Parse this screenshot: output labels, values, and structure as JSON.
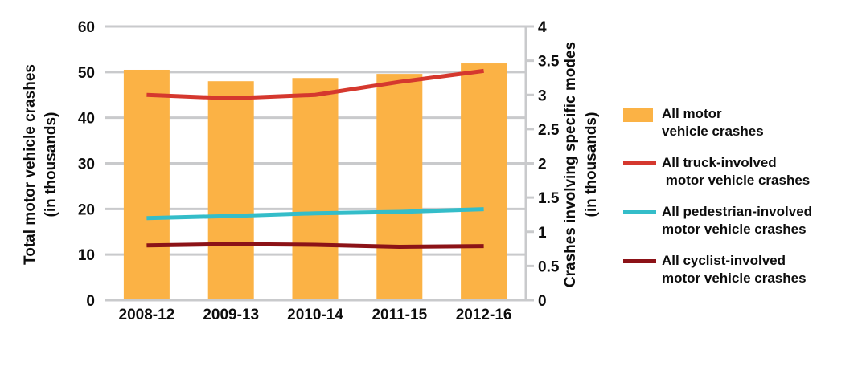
{
  "chart_data": {
    "type": "bar+line",
    "categories": [
      "2008-12",
      "2009-13",
      "2010-14",
      "2011-15",
      "2012-16"
    ],
    "series": [
      {
        "name": "All motor vehicle crashes",
        "type": "bar",
        "axis": "left",
        "color": "#FBB245",
        "values": [
          50.5,
          48.0,
          48.7,
          49.6,
          51.9
        ]
      },
      {
        "name": "All truck-involved motor vehicle crashes",
        "type": "line",
        "axis": "right",
        "color": "#D5382E",
        "values": [
          3.0,
          2.95,
          3.0,
          3.19,
          3.35
        ]
      },
      {
        "name": "All pedestrian-involved motor vehicle crashes",
        "type": "line",
        "axis": "right",
        "color": "#34BDC9",
        "values": [
          1.2,
          1.23,
          1.27,
          1.29,
          1.33
        ]
      },
      {
        "name": "All cyclist-involved motor vehicle crashes",
        "type": "line",
        "axis": "right",
        "color": "#8C1217",
        "values": [
          0.8,
          0.82,
          0.81,
          0.78,
          0.79
        ]
      }
    ],
    "left_axis": {
      "title_line1": "Total motor vehicle crashes",
      "title_line2": "(in thousands)",
      "min": 0,
      "max": 60,
      "ticks": [
        "0",
        "10",
        "20",
        "30",
        "40",
        "50",
        "60"
      ]
    },
    "right_axis": {
      "title_line1": "Crashes involving specific modes",
      "title_line2": "(in thousands)",
      "min": 0,
      "max": 4,
      "ticks": [
        "0",
        "0.5",
        "1",
        "1.5",
        "2",
        "2.5",
        "3",
        "3.5",
        "4"
      ]
    },
    "grid": true,
    "grid_color": "#C9CACC",
    "legend_position": "right"
  },
  "legend": {
    "items": [
      {
        "swatch": "bar",
        "line1": "All motor",
        "line2": "vehicle crashes"
      },
      {
        "swatch": "line",
        "line1": "All truck-involved",
        "line2": " motor vehicle crashes"
      },
      {
        "swatch": "line",
        "line1": "All pedestrian-involved",
        "line2": "motor vehicle crashes"
      },
      {
        "swatch": "line",
        "line1": "All cyclist-involved",
        "line2": "motor vehicle crashes"
      }
    ]
  }
}
